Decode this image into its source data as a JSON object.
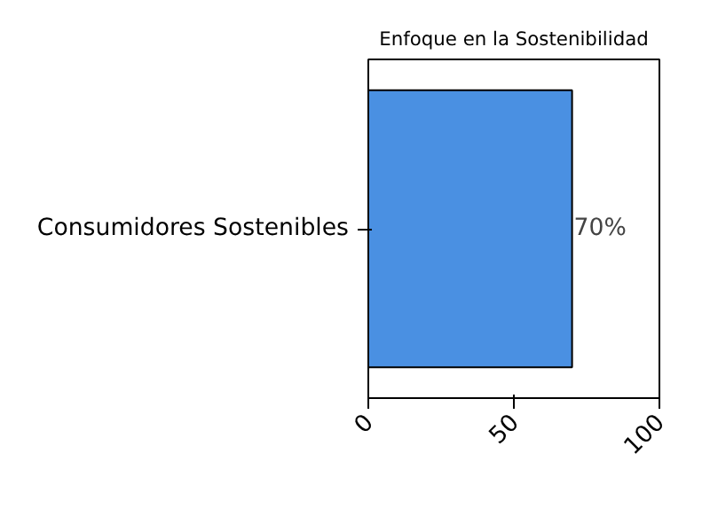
{
  "chart_data": {
    "type": "bar",
    "orientation": "horizontal",
    "title": "Enfoque en la Sostenibilidad",
    "categories": [
      "Consumidores Sostenibles"
    ],
    "values": [
      70
    ],
    "value_labels": [
      "70%"
    ],
    "color": "#4a90e2",
    "xlim": [
      0,
      100
    ],
    "xticks": [
      0,
      50,
      100
    ],
    "grid": false
  }
}
